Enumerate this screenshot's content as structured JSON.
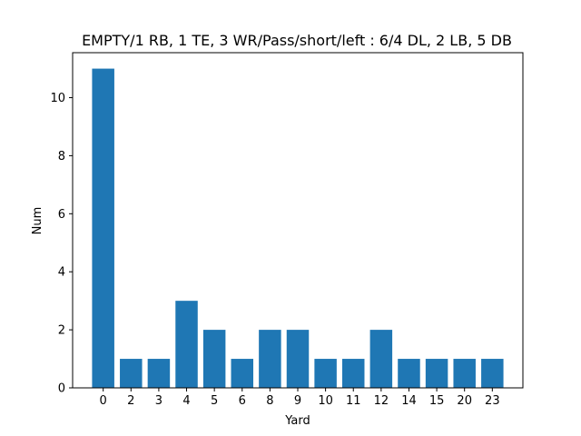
{
  "chart_data": {
    "type": "bar",
    "title": "EMPTY/1 RB, 1 TE, 3 WR/Pass/short/left : 6/4 DL, 2 LB, 5 DB",
    "xlabel": "Yard",
    "ylabel": "Num",
    "categories": [
      "0",
      "2",
      "3",
      "4",
      "5",
      "6",
      "8",
      "9",
      "10",
      "11",
      "12",
      "14",
      "15",
      "20",
      "23"
    ],
    "values": [
      11,
      1,
      1,
      3,
      2,
      1,
      2,
      2,
      1,
      1,
      2,
      1,
      1,
      1,
      1
    ],
    "ylim": [
      0,
      11.55
    ],
    "yticks": [
      "0",
      "2",
      "4",
      "6",
      "8",
      "10"
    ],
    "bar_color": "#1f77b4",
    "grid": false,
    "legend": "none"
  }
}
